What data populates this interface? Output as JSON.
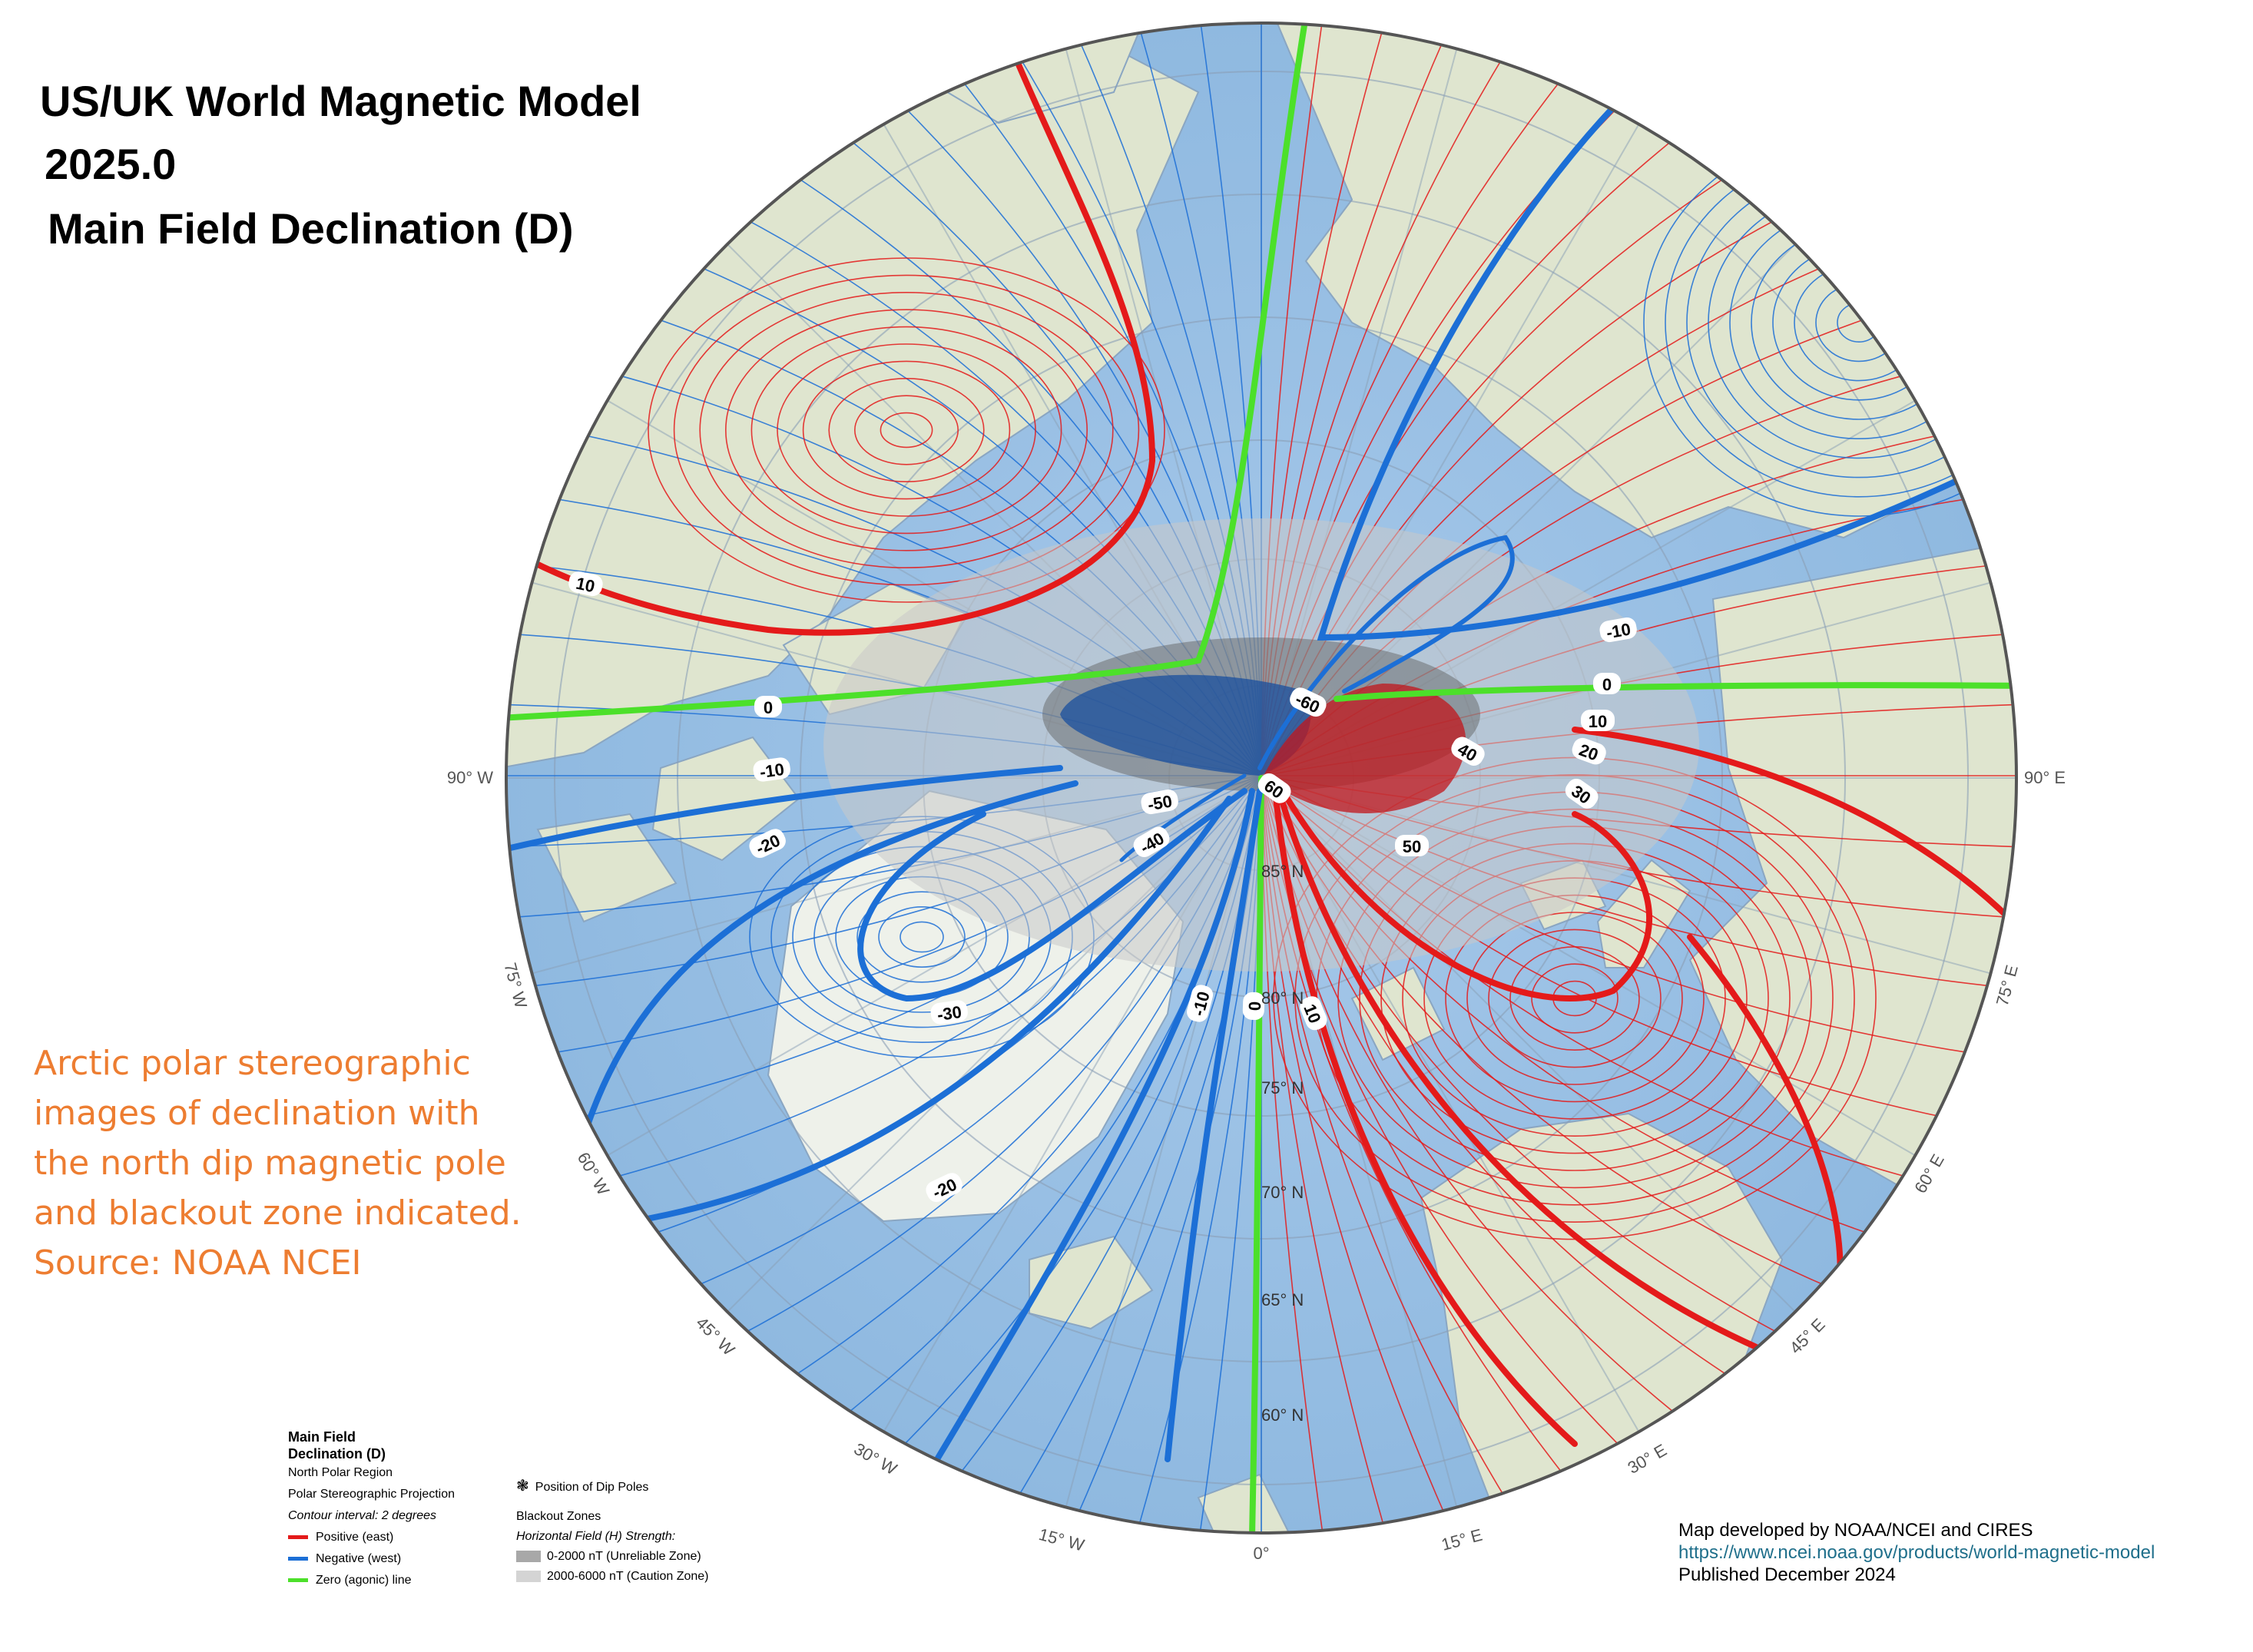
{
  "title": {
    "line1": "US/UK World Magnetic Model",
    "line2": "2025.0",
    "line3": "Main Field Declination (D)"
  },
  "caption": [
    "Arctic polar stereographic",
    "images of declination with",
    "the north dip magnetic pole",
    "and blackout zone indicated.",
    "Source: NOAA NCEI"
  ],
  "colors": {
    "positive": "#e41a1a",
    "negative": "#1c6fd6",
    "agonic": "#4ce02a",
    "ocean": "#9cc2e6",
    "land": "#dfe6d2",
    "caption": "#ed7d31"
  },
  "map": {
    "longitude_labels": [
      {
        "text": "0°"
      },
      {
        "text": "15° E"
      },
      {
        "text": "30° E"
      },
      {
        "text": "45° E"
      },
      {
        "text": "60° E"
      },
      {
        "text": "75° E"
      },
      {
        "text": "90° E"
      },
      {
        "text": "15° W"
      },
      {
        "text": "30° W"
      },
      {
        "text": "45° W"
      },
      {
        "text": "60° W"
      },
      {
        "text": "75° W"
      },
      {
        "text": "90° W"
      }
    ],
    "latitude_labels": [
      "85° N",
      "80° N",
      "75° N",
      "70° N",
      "65° N",
      "60° N"
    ],
    "contour_labels": [
      "10",
      "0",
      "-10",
      "-20",
      "-10",
      "0",
      "10",
      "20",
      "30",
      "40",
      "50",
      "60",
      "-60",
      "-50",
      "-40",
      "-30",
      "-20",
      "-10",
      "0",
      "10"
    ]
  },
  "legend": {
    "title_line1": "Main Field",
    "title_line2": "Declination (D)",
    "region": "North Polar Region",
    "projection": "Polar Stereographic Projection",
    "interval": "Contour interval: 2 degrees",
    "items": [
      {
        "label": "Positive (east)",
        "color": "#e41a1a"
      },
      {
        "label": "Negative (west)",
        "color": "#1c6fd6"
      },
      {
        "label": "Zero (agonic) line",
        "color": "#4ce02a"
      }
    ],
    "dip_poles": "Position of Dip Poles",
    "blackout_title": "Blackout Zones",
    "blackout_subtitle": "Horizontal Field (H) Strength:",
    "blackout_items": [
      {
        "label": "0-2000 nT (Unreliable Zone)",
        "color": "#a8a8a8"
      },
      {
        "label": "2000-6000 nT (Caution Zone)",
        "color": "#d4d4d4"
      }
    ]
  },
  "credits": {
    "line1": "Map developed by NOAA/NCEI and CIRES",
    "url": "https://www.ncei.noaa.gov/products/world-magnetic-model",
    "line3": "Published December 2024"
  }
}
